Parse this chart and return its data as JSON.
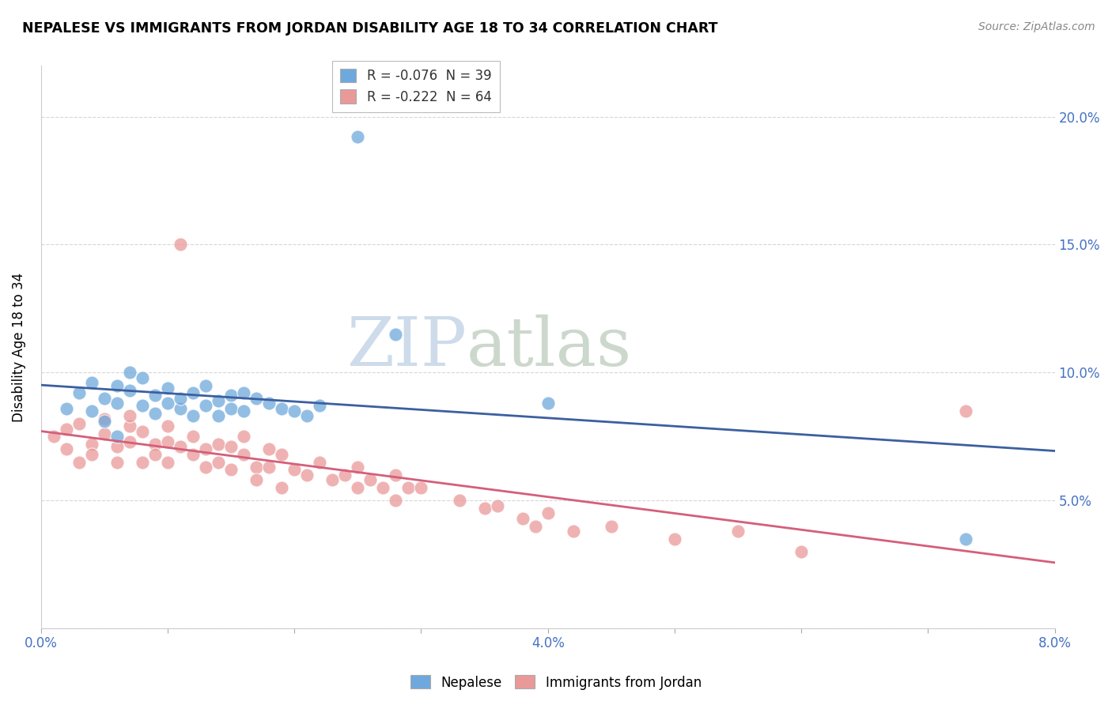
{
  "title": "NEPALESE VS IMMIGRANTS FROM JORDAN DISABILITY AGE 18 TO 34 CORRELATION CHART",
  "source": "Source: ZipAtlas.com",
  "ylabel": "Disability Age 18 to 34",
  "xlim": [
    0.0,
    0.08
  ],
  "ylim": [
    0.0,
    0.22
  ],
  "xticks": [
    0.0,
    0.01,
    0.02,
    0.03,
    0.04,
    0.05,
    0.06,
    0.07,
    0.08
  ],
  "xticklabels": [
    "0.0%",
    "",
    "",
    "",
    "4.0%",
    "",
    "",
    "",
    "8.0%"
  ],
  "yticks": [
    0.0,
    0.05,
    0.1,
    0.15,
    0.2
  ],
  "yticklabels": [
    "",
    "5.0%",
    "10.0%",
    "15.0%",
    "20.0%"
  ],
  "nepalese_color": "#6fa8dc",
  "jordan_color": "#ea9999",
  "nepalese_line_color": "#3c5fa0",
  "jordan_line_color": "#d45f7a",
  "nepalese_x": [
    0.002,
    0.003,
    0.004,
    0.004,
    0.005,
    0.005,
    0.006,
    0.006,
    0.006,
    0.007,
    0.007,
    0.008,
    0.008,
    0.009,
    0.009,
    0.01,
    0.01,
    0.011,
    0.011,
    0.012,
    0.012,
    0.013,
    0.013,
    0.014,
    0.014,
    0.015,
    0.015,
    0.016,
    0.016,
    0.017,
    0.018,
    0.019,
    0.02,
    0.021,
    0.022,
    0.025,
    0.028,
    0.04,
    0.073
  ],
  "nepalese_y": [
    0.086,
    0.092,
    0.085,
    0.096,
    0.081,
    0.09,
    0.088,
    0.095,
    0.075,
    0.1,
    0.093,
    0.087,
    0.098,
    0.084,
    0.091,
    0.088,
    0.094,
    0.086,
    0.09,
    0.083,
    0.092,
    0.087,
    0.095,
    0.089,
    0.083,
    0.091,
    0.086,
    0.092,
    0.085,
    0.09,
    0.088,
    0.086,
    0.085,
    0.083,
    0.087,
    0.192,
    0.115,
    0.088,
    0.035
  ],
  "jordan_x": [
    0.001,
    0.002,
    0.002,
    0.003,
    0.003,
    0.004,
    0.004,
    0.005,
    0.005,
    0.006,
    0.006,
    0.007,
    0.007,
    0.007,
    0.008,
    0.008,
    0.009,
    0.009,
    0.01,
    0.01,
    0.01,
    0.011,
    0.011,
    0.012,
    0.012,
    0.013,
    0.013,
    0.014,
    0.014,
    0.015,
    0.015,
    0.016,
    0.016,
    0.017,
    0.017,
    0.018,
    0.018,
    0.019,
    0.019,
    0.02,
    0.021,
    0.022,
    0.023,
    0.024,
    0.025,
    0.025,
    0.026,
    0.027,
    0.028,
    0.028,
    0.029,
    0.03,
    0.033,
    0.035,
    0.036,
    0.038,
    0.039,
    0.04,
    0.042,
    0.045,
    0.05,
    0.055,
    0.06,
    0.073
  ],
  "jordan_y": [
    0.075,
    0.07,
    0.078,
    0.065,
    0.08,
    0.072,
    0.068,
    0.076,
    0.082,
    0.071,
    0.065,
    0.079,
    0.073,
    0.083,
    0.077,
    0.065,
    0.072,
    0.068,
    0.079,
    0.073,
    0.065,
    0.15,
    0.071,
    0.075,
    0.068,
    0.07,
    0.063,
    0.072,
    0.065,
    0.071,
    0.062,
    0.068,
    0.075,
    0.063,
    0.058,
    0.07,
    0.063,
    0.068,
    0.055,
    0.062,
    0.06,
    0.065,
    0.058,
    0.06,
    0.063,
    0.055,
    0.058,
    0.055,
    0.06,
    0.05,
    0.055,
    0.055,
    0.05,
    0.047,
    0.048,
    0.043,
    0.04,
    0.045,
    0.038,
    0.04,
    0.035,
    0.038,
    0.03,
    0.085
  ]
}
